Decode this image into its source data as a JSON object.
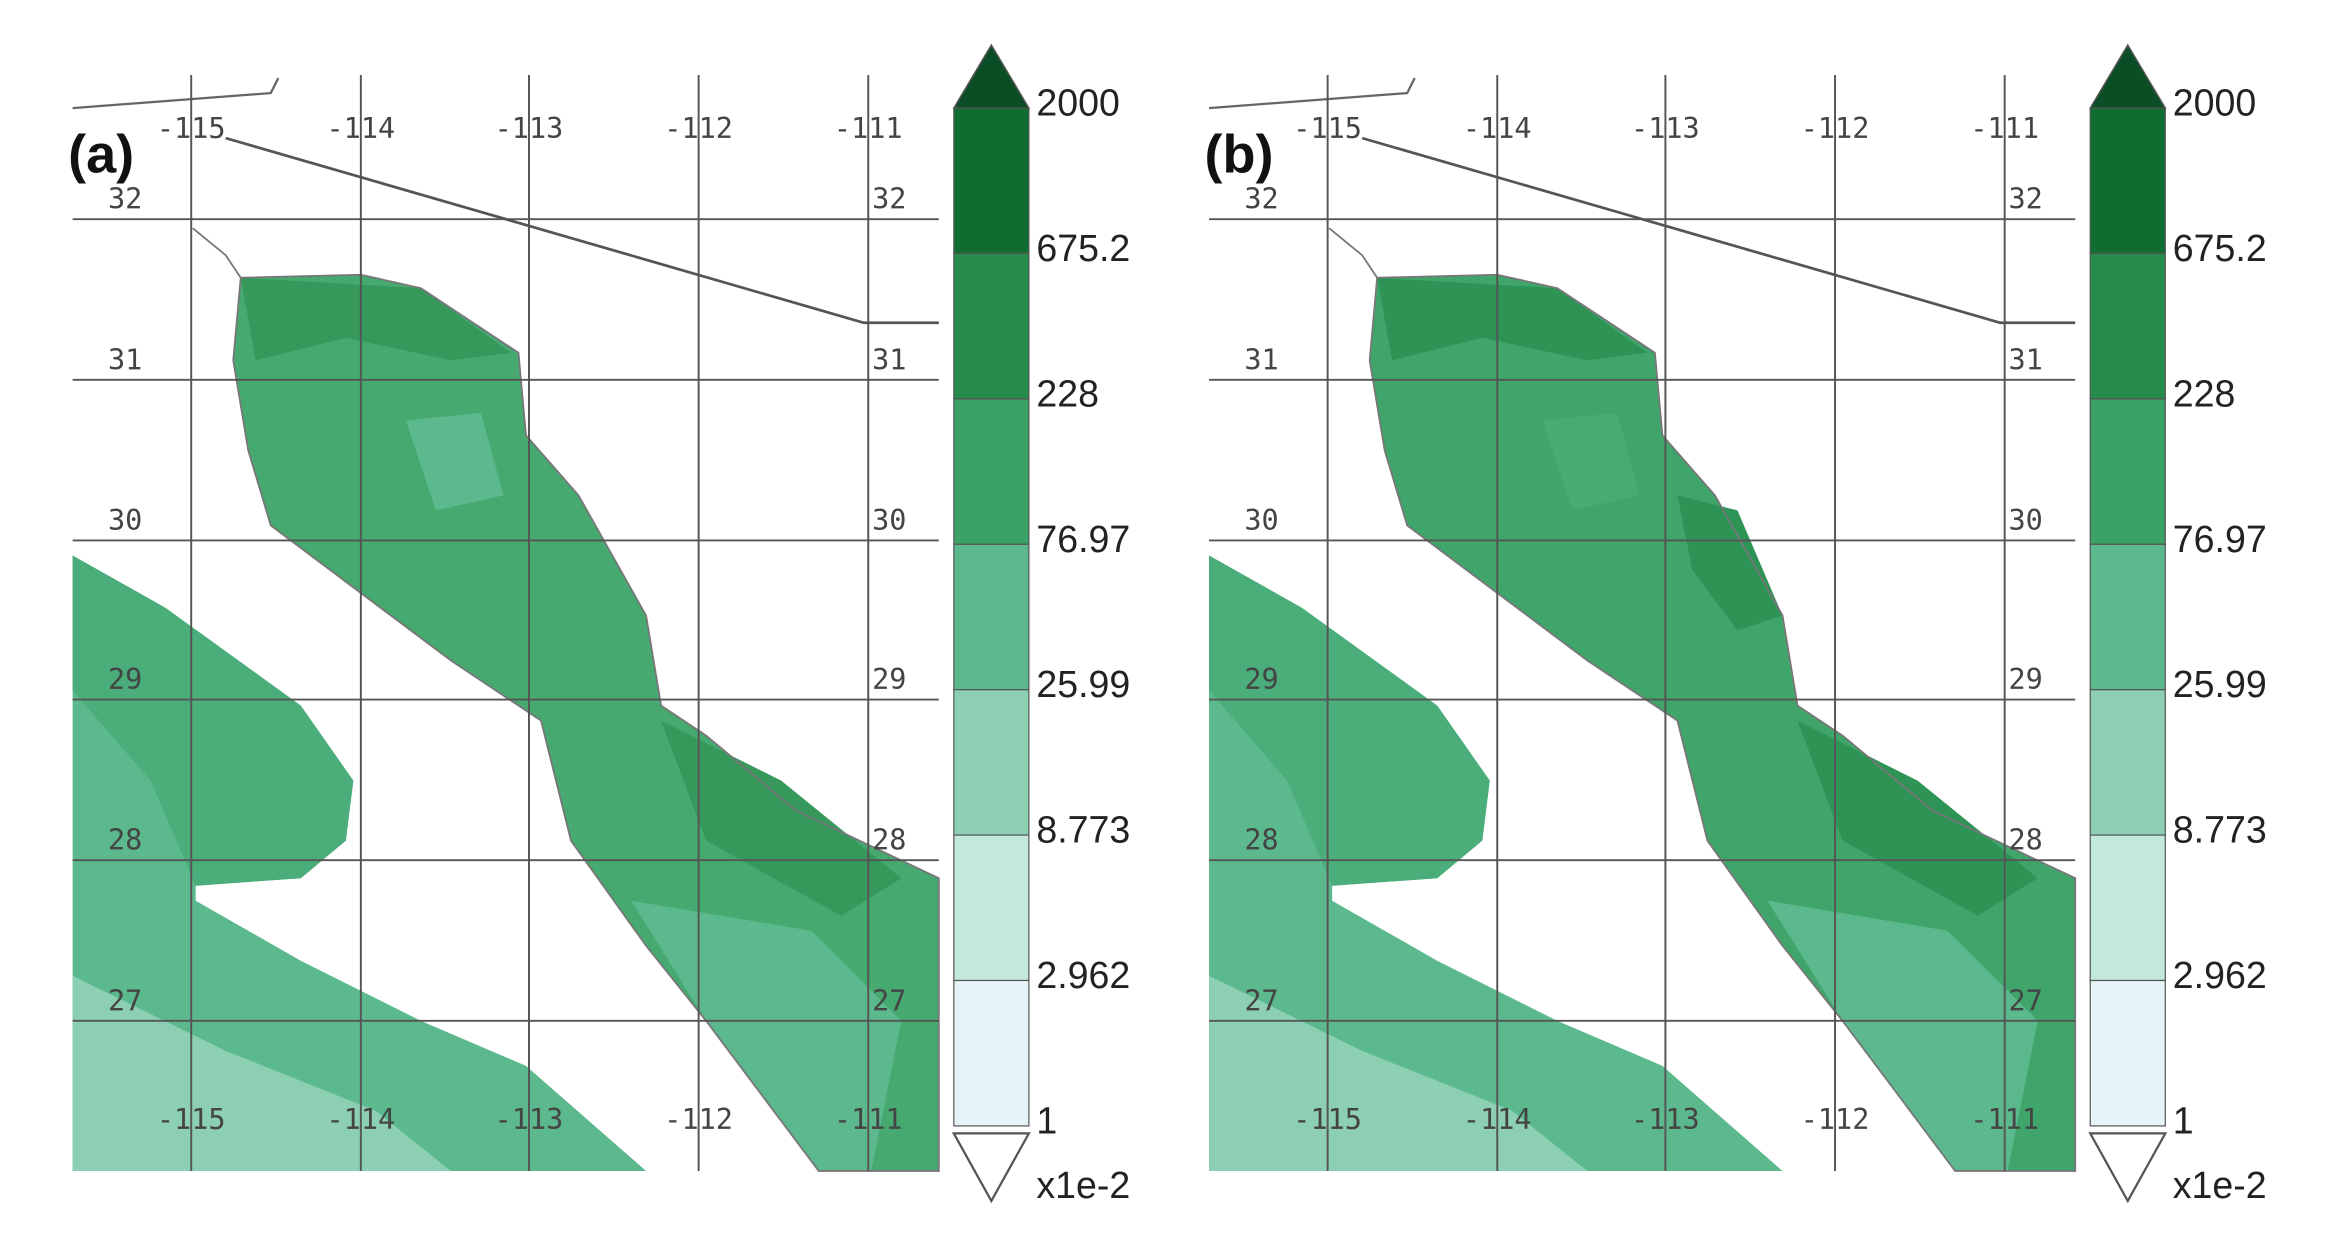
{
  "panels": [
    {
      "label": "(a)",
      "lon_labels_top": [
        "-115",
        "-114",
        "-113",
        "-112",
        "-111"
      ],
      "lon_labels_bottom": [
        "-115",
        "-114",
        "-113",
        "-112",
        "-111"
      ],
      "lat_labels_left": [
        "32",
        "31",
        "30",
        "29",
        "28",
        "27"
      ],
      "lat_labels_right": [
        "32",
        "31",
        "30",
        "29",
        "28",
        "27"
      ],
      "colorbar": {
        "labels": [
          "2000",
          "675.2",
          "228",
          "76.97",
          "25.99",
          "8.773",
          "2.962",
          "1"
        ],
        "unit": "x1e-2"
      }
    },
    {
      "label": "(b)",
      "lon_labels_top": [
        "-115",
        "-114",
        "-113",
        "-112",
        "-111"
      ],
      "lon_labels_bottom": [
        "-115",
        "-114",
        "-113",
        "-112",
        "-111"
      ],
      "lat_labels_left": [
        "32",
        "31",
        "30",
        "29",
        "28",
        "27"
      ],
      "lat_labels_right": [
        "32",
        "31",
        "30",
        "29",
        "28",
        "27"
      ],
      "colorbar": {
        "labels": [
          "2000",
          "675.2",
          "228",
          "76.97",
          "25.99",
          "8.773",
          "2.962",
          "1"
        ],
        "unit": "x1e-2"
      }
    }
  ]
}
